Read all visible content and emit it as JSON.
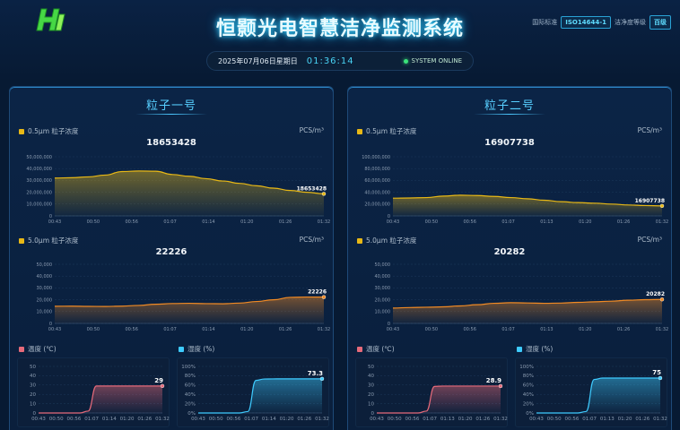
{
  "header": {
    "title": "恒颢光电智慧洁净监测系统",
    "standard_label": "国际标准",
    "standard_value": "ISO14644-1",
    "grade_label": "洁净度等级",
    "grade_value": "百级",
    "date": "2025年07月06日星期日",
    "time": "01:36:14",
    "status": "SYSTEM ONLINE"
  },
  "colors": {
    "yellow": "#e8b816",
    "orange": "#f08a24",
    "red": "#e66a7a",
    "cyan": "#3ecbff",
    "accent": "#57cfff"
  },
  "panels": [
    {
      "title": "粒子一号",
      "c05": {
        "label": "0.5μm 粒子浓度",
        "unit": "PCS/m³",
        "value": "18653428",
        "end_label": "18653428",
        "yticks": [
          "50,000,000",
          "40,000,000",
          "30,000,000",
          "20,000,000",
          "10,000,000",
          "0"
        ],
        "ymax": 50000000,
        "xticks": [
          "00:43",
          "00:50",
          "00:56",
          "01:07",
          "01:14",
          "01:20",
          "01:26",
          "01:32"
        ],
        "series": [
          32000000,
          32300000,
          33000000,
          34500000,
          37500000,
          38000000,
          37800000,
          35000000,
          33500000,
          31500000,
          29500000,
          27500000,
          25500000,
          23500000,
          21500000,
          20000000,
          18653428
        ]
      },
      "c50": {
        "label": "5.0μm 粒子浓度",
        "unit": "PCS/m³",
        "value": "22226",
        "end_label": "22226",
        "yticks": [
          "50,000",
          "40,000",
          "30,000",
          "20,000",
          "10,000",
          "0"
        ],
        "ymax": 50000,
        "xticks": [
          "00:43",
          "00:50",
          "00:56",
          "01:07",
          "01:14",
          "01:20",
          "01:26",
          "01:32"
        ],
        "series": [
          14500,
          14600,
          14400,
          14300,
          14600,
          15200,
          16200,
          16800,
          17000,
          16700,
          16600,
          17200,
          18500,
          20000,
          22000,
          22300,
          22226
        ]
      },
      "temp": {
        "label": "温度 (℃)",
        "end_label": "29",
        "yticks": [
          "50",
          "40",
          "30",
          "20",
          "10",
          "0"
        ],
        "ymax": 50,
        "xticks": [
          "00:43",
          "00:50",
          "00:56",
          "01:07",
          "01:14",
          "01:20",
          "01:26",
          "01:32"
        ],
        "series": [
          0,
          0,
          0,
          0,
          0,
          0,
          2,
          29,
          29,
          29,
          29,
          29,
          29,
          29,
          29,
          29
        ]
      },
      "hum": {
        "label": "湿度 (%)",
        "end_label": "73.3",
        "yticks": [
          "100%",
          "80%",
          "60%",
          "40%",
          "20%",
          "0%"
        ],
        "ymax": 100,
        "xticks": [
          "00:43",
          "00:50",
          "00:56",
          "01:07",
          "01:14",
          "01:20",
          "01:26",
          "01:32"
        ],
        "series": [
          0,
          0,
          0,
          0,
          0,
          0,
          3,
          70,
          73,
          73.2,
          73.3,
          73.3,
          73.3,
          73.3,
          73.3,
          73.3
        ]
      }
    },
    {
      "title": "粒子二号",
      "c05": {
        "label": "0.5μm 粒子浓度",
        "unit": "PCS/m³",
        "value": "16907738",
        "end_label": "16907738",
        "yticks": [
          "100,000,000",
          "80,000,000",
          "60,000,000",
          "40,000,000",
          "20,000,000",
          "0"
        ],
        "ymax": 100000000,
        "xticks": [
          "00:43",
          "00:50",
          "00:56",
          "01:07",
          "01:13",
          "01:20",
          "01:26",
          "01:32"
        ],
        "series": [
          30000000,
          30300000,
          31000000,
          33500000,
          35000000,
          34500000,
          33000000,
          31000000,
          29000000,
          26500000,
          24000000,
          22500000,
          21500000,
          20000000,
          18500000,
          17500000,
          16907738
        ]
      },
      "c50": {
        "label": "5.0μm 粒子浓度",
        "unit": "PCS/m³",
        "value": "20282",
        "end_label": "20282",
        "yticks": [
          "50,000",
          "40,000",
          "30,000",
          "20,000",
          "10,000",
          "0"
        ],
        "ymax": 50000,
        "xticks": [
          "00:43",
          "00:50",
          "00:56",
          "01:07",
          "01:13",
          "01:20",
          "01:26",
          "01:32"
        ],
        "series": [
          13000,
          13400,
          13700,
          14000,
          14800,
          15800,
          17000,
          17500,
          17300,
          17000,
          17200,
          17800,
          18300,
          18800,
          19600,
          20100,
          20282
        ]
      },
      "temp": {
        "label": "温度 (℃)",
        "end_label": "28.9",
        "yticks": [
          "50",
          "40",
          "30",
          "20",
          "10",
          "0"
        ],
        "ymax": 50,
        "xticks": [
          "00:43",
          "00:50",
          "00:56",
          "01:07",
          "01:13",
          "01:20",
          "01:26",
          "01:32"
        ],
        "series": [
          0,
          0,
          0,
          0,
          0,
          0,
          2,
          28.5,
          28.9,
          28.9,
          28.9,
          28.9,
          28.9,
          28.9,
          28.9,
          28.9
        ]
      },
      "hum": {
        "label": "湿度 (%)",
        "end_label": "75",
        "yticks": [
          "100%",
          "80%",
          "60%",
          "40%",
          "20%",
          "0%"
        ],
        "ymax": 100,
        "xticks": [
          "00:43",
          "00:50",
          "00:56",
          "01:07",
          "01:13",
          "01:20",
          "01:26",
          "01:32"
        ],
        "series": [
          0,
          0,
          0,
          0,
          0,
          0,
          3,
          72,
          75,
          75,
          75,
          75,
          75,
          75,
          75,
          75
        ]
      }
    }
  ]
}
